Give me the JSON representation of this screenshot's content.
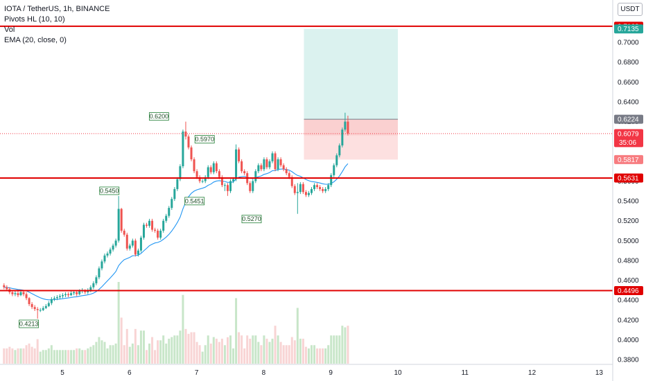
{
  "legend": {
    "symbol": "IOTA / TetherUS, 1h, BINANCE",
    "pivots": "Pivots HL (10, 10)",
    "vol": "Vol",
    "ema": "EMA (20, close, 0)"
  },
  "currency": "USDT",
  "colors": {
    "up": "#26a69a",
    "down": "#ef5350",
    "ema": "#2196f3",
    "level_line": "#e00000",
    "profit_zone": "#d5f0ec",
    "loss_zone": "#fde0e0",
    "vol_up": "#c8e6c9",
    "vol_down": "#f8d4d4",
    "ema_pill": "#26a69a",
    "last_pill": "#f23645",
    "entry_pill": "#787b86"
  },
  "chart_data": {
    "type": "candlestick",
    "y_range": [
      0.378,
      0.7245
    ],
    "y_ticks": [
      "0.7000",
      "0.6800",
      "0.6600",
      "0.6400",
      "0.6200",
      "0.6000",
      "0.5800",
      "0.5600",
      "0.5400",
      "0.5200",
      "0.5000",
      "0.4800",
      "0.4600",
      "0.4400",
      "0.4200",
      "0.4000",
      "0.3800"
    ],
    "x_ticks": [
      "5",
      "6",
      "7",
      "8",
      "9",
      "10",
      "11",
      "12",
      "13"
    ],
    "horizontal_levels": [
      {
        "label": "0.7162",
        "value": 0.7162
      },
      {
        "label": "0.5631",
        "value": 0.5631
      },
      {
        "label": "0.4496",
        "value": 0.4496
      }
    ],
    "price_labels": {
      "ema": "0.7135",
      "entry": "0.6224",
      "last": "0.6079",
      "countdown": "35:06",
      "stop": "0.5817"
    },
    "position": {
      "entry": 0.6224,
      "target": 0.7135,
      "stop": 0.5817,
      "start_day": 8.6,
      "end_day": 10.0
    },
    "pivots": [
      {
        "label": "0.4213",
        "value": 0.4213,
        "day": 4.5,
        "kind": "low"
      },
      {
        "label": "0.5450",
        "value": 0.545,
        "day": 5.7,
        "kind": "high"
      },
      {
        "label": "0.6200",
        "value": 0.62,
        "day": 6.44,
        "kind": "high"
      },
      {
        "label": "0.5451",
        "value": 0.5451,
        "day": 6.97,
        "kind": "low"
      },
      {
        "label": "0.5970",
        "value": 0.597,
        "day": 7.12,
        "kind": "high"
      },
      {
        "label": "0.5270",
        "value": 0.527,
        "day": 7.82,
        "kind": "low"
      }
    ],
    "candles": {
      "start_day": 4.13,
      "step_days": 0.04167,
      "open": [
        0.455,
        0.453,
        0.451,
        0.448,
        0.446,
        0.447,
        0.445,
        0.448,
        0.446,
        0.442,
        0.436,
        0.433,
        0.431,
        0.43,
        0.43,
        0.432,
        0.434,
        0.437,
        0.441,
        0.442,
        0.443,
        0.444,
        0.445,
        0.446,
        0.445,
        0.447,
        0.448,
        0.446,
        0.449,
        0.45,
        0.448,
        0.45,
        0.453,
        0.457,
        0.463,
        0.472,
        0.479,
        0.485,
        0.487,
        0.491,
        0.495,
        0.5,
        0.532,
        0.51,
        0.506,
        0.492,
        0.495,
        0.5,
        0.486,
        0.49,
        0.503,
        0.516,
        0.515,
        0.52,
        0.511,
        0.51,
        0.503,
        0.51,
        0.52,
        0.525,
        0.533,
        0.542,
        0.552,
        0.562,
        0.575,
        0.61,
        0.605,
        0.594,
        0.582,
        0.57,
        0.564,
        0.56,
        0.56,
        0.564,
        0.574,
        0.569,
        0.578,
        0.57,
        0.564,
        0.556,
        0.556,
        0.55,
        0.56,
        0.562,
        0.592,
        0.58,
        0.57,
        0.568,
        0.558,
        0.55,
        0.56,
        0.57,
        0.576,
        0.572,
        0.582,
        0.574,
        0.58,
        0.588,
        0.572,
        0.582,
        0.576,
        0.572,
        0.568,
        0.564,
        0.555,
        0.548,
        0.549,
        0.557,
        0.549,
        0.546,
        0.548,
        0.552,
        0.556,
        0.554,
        0.552,
        0.55,
        0.552,
        0.556,
        0.566,
        0.576,
        0.586,
        0.596,
        0.612,
        0.62
      ],
      "close": [
        0.453,
        0.451,
        0.448,
        0.446,
        0.447,
        0.445,
        0.448,
        0.446,
        0.442,
        0.436,
        0.433,
        0.431,
        0.43,
        0.43,
        0.432,
        0.434,
        0.437,
        0.441,
        0.442,
        0.443,
        0.444,
        0.445,
        0.446,
        0.445,
        0.447,
        0.448,
        0.446,
        0.449,
        0.45,
        0.448,
        0.45,
        0.453,
        0.457,
        0.463,
        0.472,
        0.479,
        0.485,
        0.487,
        0.491,
        0.495,
        0.5,
        0.532,
        0.51,
        0.506,
        0.492,
        0.495,
        0.5,
        0.486,
        0.49,
        0.503,
        0.516,
        0.515,
        0.52,
        0.511,
        0.51,
        0.503,
        0.51,
        0.52,
        0.525,
        0.533,
        0.542,
        0.552,
        0.562,
        0.575,
        0.61,
        0.605,
        0.594,
        0.582,
        0.57,
        0.564,
        0.56,
        0.56,
        0.564,
        0.574,
        0.569,
        0.578,
        0.57,
        0.564,
        0.556,
        0.556,
        0.55,
        0.56,
        0.562,
        0.592,
        0.58,
        0.57,
        0.568,
        0.558,
        0.55,
        0.56,
        0.57,
        0.576,
        0.572,
        0.582,
        0.574,
        0.58,
        0.588,
        0.572,
        0.582,
        0.576,
        0.572,
        0.568,
        0.564,
        0.555,
        0.548,
        0.549,
        0.557,
        0.549,
        0.546,
        0.548,
        0.552,
        0.556,
        0.554,
        0.552,
        0.55,
        0.552,
        0.556,
        0.566,
        0.576,
        0.586,
        0.596,
        0.612,
        0.62,
        0.6079
      ],
      "high": [
        0.457,
        0.455,
        0.453,
        0.45,
        0.449,
        0.449,
        0.45,
        0.45,
        0.448,
        0.443,
        0.438,
        0.435,
        0.433,
        0.432,
        0.434,
        0.436,
        0.439,
        0.443,
        0.444,
        0.445,
        0.446,
        0.447,
        0.448,
        0.448,
        0.449,
        0.45,
        0.45,
        0.451,
        0.452,
        0.451,
        0.452,
        0.455,
        0.459,
        0.465,
        0.474,
        0.481,
        0.487,
        0.489,
        0.493,
        0.497,
        0.502,
        0.545,
        0.533,
        0.512,
        0.508,
        0.497,
        0.502,
        0.502,
        0.492,
        0.505,
        0.518,
        0.518,
        0.522,
        0.522,
        0.513,
        0.512,
        0.512,
        0.522,
        0.527,
        0.535,
        0.544,
        0.554,
        0.564,
        0.577,
        0.612,
        0.62,
        0.607,
        0.596,
        0.584,
        0.572,
        0.566,
        0.562,
        0.566,
        0.576,
        0.576,
        0.58,
        0.58,
        0.572,
        0.566,
        0.558,
        0.558,
        0.562,
        0.564,
        0.597,
        0.594,
        0.582,
        0.572,
        0.57,
        0.56,
        0.562,
        0.572,
        0.578,
        0.578,
        0.584,
        0.584,
        0.582,
        0.59,
        0.59,
        0.584,
        0.584,
        0.578,
        0.574,
        0.57,
        0.566,
        0.557,
        0.558,
        0.559,
        0.559,
        0.551,
        0.55,
        0.554,
        0.558,
        0.558,
        0.556,
        0.554,
        0.554,
        0.558,
        0.568,
        0.578,
        0.588,
        0.598,
        0.614,
        0.629,
        0.626
      ],
      "low": [
        0.451,
        0.449,
        0.446,
        0.444,
        0.444,
        0.443,
        0.444,
        0.444,
        0.44,
        0.434,
        0.431,
        0.429,
        0.4213,
        0.428,
        0.429,
        0.431,
        0.433,
        0.435,
        0.439,
        0.44,
        0.441,
        0.442,
        0.443,
        0.443,
        0.444,
        0.445,
        0.444,
        0.445,
        0.447,
        0.446,
        0.446,
        0.448,
        0.451,
        0.455,
        0.461,
        0.47,
        0.477,
        0.483,
        0.485,
        0.489,
        0.493,
        0.498,
        0.508,
        0.504,
        0.49,
        0.49,
        0.493,
        0.484,
        0.484,
        0.488,
        0.501,
        0.513,
        0.513,
        0.509,
        0.508,
        0.501,
        0.501,
        0.508,
        0.518,
        0.523,
        0.531,
        0.54,
        0.55,
        0.56,
        0.573,
        0.602,
        0.592,
        0.58,
        0.568,
        0.562,
        0.558,
        0.558,
        0.558,
        0.562,
        0.567,
        0.567,
        0.568,
        0.562,
        0.554,
        0.55,
        0.5451,
        0.548,
        0.558,
        0.56,
        0.578,
        0.568,
        0.566,
        0.556,
        0.548,
        0.548,
        0.558,
        0.568,
        0.57,
        0.57,
        0.572,
        0.572,
        0.578,
        0.57,
        0.57,
        0.574,
        0.57,
        0.566,
        0.562,
        0.553,
        0.546,
        0.527,
        0.547,
        0.547,
        0.544,
        0.544,
        0.546,
        0.55,
        0.552,
        0.55,
        0.548,
        0.548,
        0.55,
        0.554,
        0.564,
        0.574,
        0.584,
        0.594,
        0.61,
        0.606
      ]
    }
  }
}
